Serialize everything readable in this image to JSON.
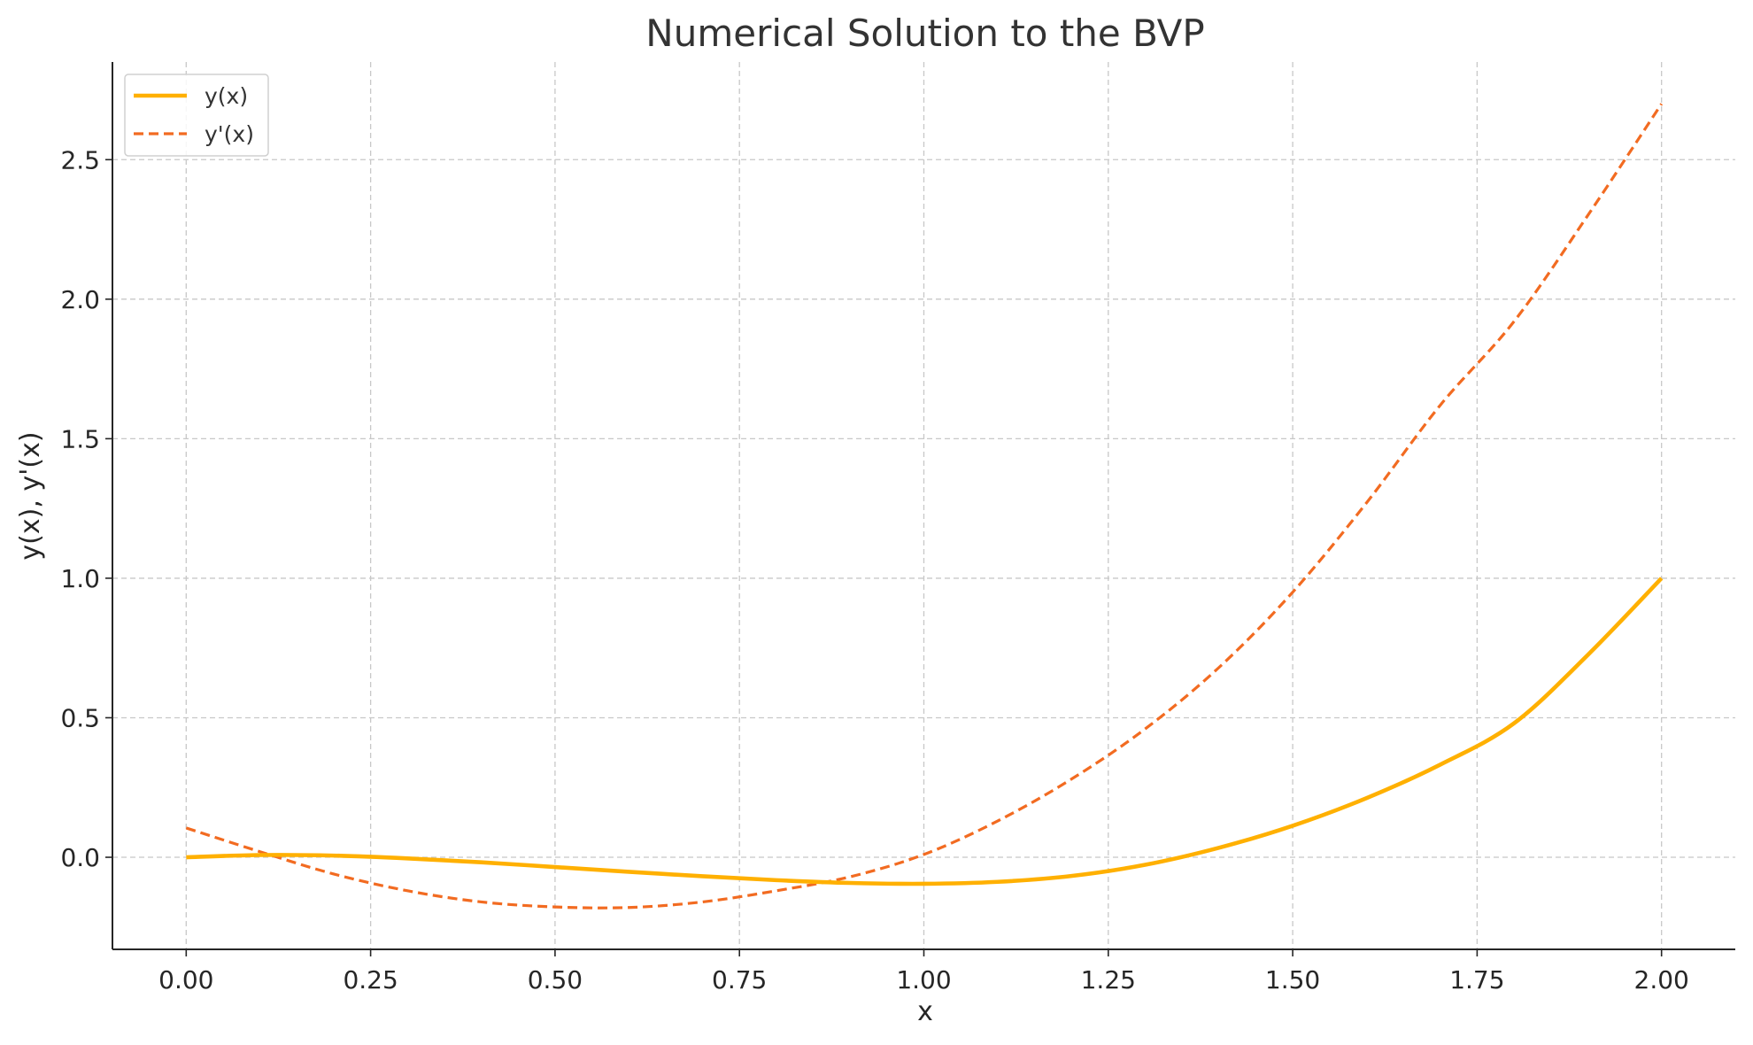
{
  "chart_data": {
    "type": "line",
    "title": "Numerical Solution to the BVP",
    "xlabel": "x",
    "ylabel": "y(x), y'(x)",
    "xlim": [
      -0.1,
      2.1
    ],
    "ylim": [
      -0.33,
      2.85
    ],
    "xticks": [
      0.0,
      0.25,
      0.5,
      0.75,
      1.0,
      1.25,
      1.5,
      1.75,
      2.0
    ],
    "xtick_labels": [
      "0.00",
      "0.25",
      "0.50",
      "0.75",
      "1.00",
      "1.25",
      "1.50",
      "1.75",
      "2.00"
    ],
    "yticks": [
      0.0,
      0.5,
      1.0,
      1.5,
      2.0,
      2.5
    ],
    "ytick_labels": [
      "0.0",
      "0.5",
      "1.0",
      "1.5",
      "2.0",
      "2.5"
    ],
    "grid": true,
    "legend_position": "top-left",
    "series": [
      {
        "name": "y(x)",
        "color": "#FFB000",
        "style": "solid",
        "x": [
          0.0,
          0.1,
          0.2,
          0.3,
          0.4,
          0.5,
          0.6,
          0.7,
          0.8,
          0.9,
          1.0,
          1.1,
          1.2,
          1.3,
          1.4,
          1.5,
          1.6,
          1.7,
          1.8,
          1.9,
          2.0
        ],
        "y": [
          0.0,
          0.008,
          0.006,
          -0.004,
          -0.018,
          -0.035,
          -0.052,
          -0.068,
          -0.082,
          -0.092,
          -0.095,
          -0.088,
          -0.067,
          -0.027,
          0.034,
          0.113,
          0.212,
          0.332,
          0.48,
          0.725,
          1.0
        ]
      },
      {
        "name": "y'(x)",
        "color": "#F26B21",
        "style": "dashed",
        "x": [
          0.0,
          0.1,
          0.2,
          0.3,
          0.4,
          0.5,
          0.6,
          0.7,
          0.8,
          0.9,
          1.0,
          1.1,
          1.2,
          1.3,
          1.4,
          1.5,
          1.6,
          1.7,
          1.8,
          1.9,
          2.0
        ],
        "y": [
          0.105,
          0.02,
          -0.06,
          -0.12,
          -0.16,
          -0.178,
          -0.18,
          -0.16,
          -0.12,
          -0.07,
          0.01,
          0.13,
          0.28,
          0.46,
          0.68,
          0.95,
          1.27,
          1.62,
          1.92,
          2.3,
          2.7
        ]
      }
    ]
  }
}
